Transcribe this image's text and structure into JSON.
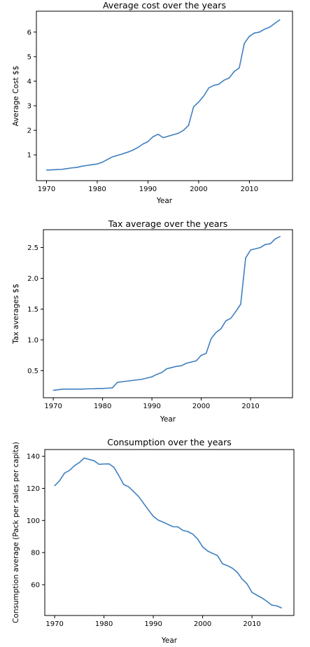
{
  "chart_data": [
    {
      "type": "line",
      "title": "Average cost over the years",
      "xlabel": "Year",
      "ylabel": "Average Cost $$",
      "xlim": [
        1968,
        2018.5
      ],
      "ylim": [
        -0.05,
        6.85
      ],
      "xticks": [
        1970,
        1980,
        1990,
        2000,
        2010
      ],
      "xtick_labels": [
        "1970",
        "1980",
        "1990",
        "2000",
        "2010"
      ],
      "yticks": [
        1,
        2,
        3,
        4,
        5,
        6
      ],
      "ytick_labels": [
        "1",
        "2",
        "3",
        "4",
        "5",
        "6"
      ],
      "grid": false,
      "color": "#3f7fbf",
      "x": [
        1970,
        1971,
        1972,
        1973,
        1974,
        1975,
        1976,
        1977,
        1978,
        1979,
        1980,
        1981,
        1982,
        1983,
        1984,
        1985,
        1986,
        1987,
        1988,
        1989,
        1990,
        1991,
        1992,
        1993,
        1994,
        1995,
        1996,
        1997,
        1998,
        1999,
        2000,
        2001,
        2002,
        2003,
        2004,
        2005,
        2006,
        2007,
        2008,
        2009,
        2010,
        2011,
        2012,
        2013,
        2014,
        2015,
        2016
      ],
      "values": [
        0.38,
        0.39,
        0.4,
        0.41,
        0.44,
        0.47,
        0.49,
        0.54,
        0.57,
        0.6,
        0.63,
        0.7,
        0.81,
        0.92,
        0.98,
        1.04,
        1.11,
        1.19,
        1.3,
        1.44,
        1.54,
        1.74,
        1.84,
        1.7,
        1.76,
        1.82,
        1.88,
        2.0,
        2.2,
        2.96,
        3.15,
        3.4,
        3.73,
        3.83,
        3.88,
        4.04,
        4.13,
        4.39,
        4.54,
        5.54,
        5.83,
        5.96,
        6.0,
        6.12,
        6.2,
        6.35,
        6.5
      ]
    },
    {
      "type": "line",
      "title": "Tax average over the years",
      "xlabel": "Year",
      "ylabel": "Tax averages $$",
      "xlim": [
        1968,
        2018.5
      ],
      "ylim": [
        0.06,
        2.79
      ],
      "xticks": [
        1970,
        1980,
        1990,
        2000,
        2010
      ],
      "xtick_labels": [
        "1970",
        "1980",
        "1990",
        "2000",
        "2010"
      ],
      "yticks": [
        0.5,
        1.0,
        1.5,
        2.0,
        2.5
      ],
      "ytick_labels": [
        "0.5",
        "1.0",
        "1.5",
        "2.0",
        "2.5"
      ],
      "grid": false,
      "color": "#3f7fbf",
      "x": [
        1970,
        1971,
        1972,
        1973,
        1974,
        1975,
        1976,
        1977,
        1978,
        1979,
        1980,
        1981,
        1982,
        1983,
        1984,
        1985,
        1986,
        1987,
        1988,
        1989,
        1990,
        1991,
        1992,
        1993,
        1994,
        1995,
        1996,
        1997,
        1998,
        1999,
        2000,
        2001,
        2002,
        2003,
        2004,
        2005,
        2006,
        2007,
        2008,
        2009,
        2010,
        2011,
        2012,
        2013,
        2014,
        2015,
        2016
      ],
      "values": [
        0.18,
        0.19,
        0.2,
        0.2,
        0.2,
        0.2,
        0.2,
        0.205,
        0.205,
        0.21,
        0.21,
        0.215,
        0.22,
        0.31,
        0.32,
        0.33,
        0.34,
        0.35,
        0.36,
        0.38,
        0.4,
        0.44,
        0.47,
        0.53,
        0.55,
        0.57,
        0.58,
        0.62,
        0.64,
        0.66,
        0.75,
        0.78,
        1.02,
        1.12,
        1.18,
        1.31,
        1.35,
        1.46,
        1.58,
        2.33,
        2.46,
        2.48,
        2.5,
        2.55,
        2.56,
        2.64,
        2.68
      ]
    },
    {
      "type": "line",
      "title": "Consumption over the years",
      "xlabel": "Year",
      "ylabel": "Consumption average (Pack per sales per capita)",
      "xlim": [
        1968,
        2018.5
      ],
      "ylim": [
        40.8,
        144.2
      ],
      "xticks": [
        1970,
        1980,
        1990,
        2000,
        2010
      ],
      "xtick_labels": [
        "1970",
        "1980",
        "1990",
        "2000",
        "2010"
      ],
      "yticks": [
        60,
        80,
        100,
        120,
        140
      ],
      "ytick_labels": [
        "60",
        "80",
        "100",
        "120",
        "140"
      ],
      "grid": false,
      "color": "#3f7fbf",
      "x": [
        1970,
        1971,
        1972,
        1973,
        1974,
        1975,
        1976,
        1977,
        1978,
        1979,
        1980,
        1981,
        1982,
        1983,
        1984,
        1985,
        1986,
        1987,
        1988,
        1989,
        1990,
        1991,
        1992,
        1993,
        1994,
        1995,
        1996,
        1997,
        1998,
        1999,
        2000,
        2001,
        2002,
        2003,
        2004,
        2005,
        2006,
        2007,
        2008,
        2009,
        2010,
        2011,
        2012,
        2013,
        2014,
        2015,
        2016
      ],
      "values": [
        121.6,
        124.8,
        129.5,
        131.2,
        134.1,
        136.1,
        138.9,
        138.0,
        137.2,
        135.0,
        135.2,
        135.3,
        133.2,
        128.0,
        122.4,
        121.0,
        118.0,
        115.0,
        110.8,
        106.6,
        102.6,
        100.2,
        99.0,
        97.5,
        96.1,
        96.0,
        93.8,
        93.1,
        91.5,
        88.4,
        83.6,
        81.0,
        79.5,
        78.2,
        73.1,
        71.9,
        70.3,
        67.8,
        63.5,
        60.5,
        55.2,
        53.4,
        51.8,
        49.7,
        47.3,
        46.8,
        45.5
      ]
    }
  ]
}
